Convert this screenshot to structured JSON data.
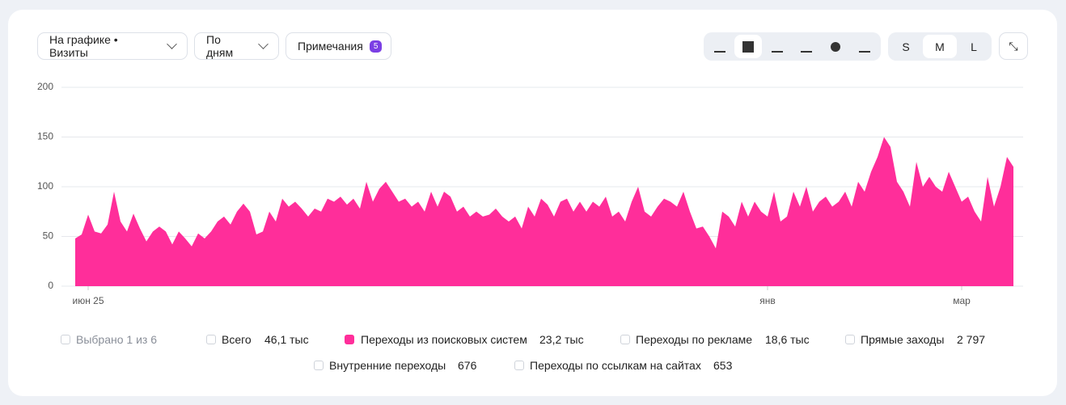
{
  "toolbar": {
    "metric": "На графике • Визиты",
    "period": "По дням",
    "notes": "Примечания",
    "notes_count": "5",
    "sizes": [
      "S",
      "M",
      "L"
    ]
  },
  "legend": {
    "selected": "Выбрано 1 из 6",
    "items": [
      {
        "name": "Всего",
        "value": "46,1 тыс",
        "checked": false
      },
      {
        "name": "Переходы из поисковых систем",
        "value": "23,2 тыс",
        "checked": true
      },
      {
        "name": "Переходы по рекламе",
        "value": "18,6 тыс",
        "checked": false
      },
      {
        "name": "Прямые заходы",
        "value": "2 797",
        "checked": false
      },
      {
        "name": "Внутренние переходы",
        "value": "676",
        "checked": false
      },
      {
        "name": "Переходы по ссылкам на сайтах",
        "value": "653",
        "checked": false
      }
    ]
  },
  "chart_data": {
    "type": "area",
    "color": "#ff2e9a",
    "ylim": [
      0,
      200
    ],
    "yticks": [
      0,
      50,
      100,
      150,
      200
    ],
    "grid": true,
    "categories": [
      null,
      null,
      "июн 25",
      null,
      null,
      null,
      null,
      null,
      null,
      null,
      null,
      null,
      null,
      null,
      null,
      null,
      null,
      null,
      null,
      null,
      null,
      null,
      null,
      null,
      null,
      null,
      null,
      null,
      null,
      null,
      null,
      null,
      null,
      null,
      null,
      null,
      null,
      null,
      null,
      null,
      null,
      null,
      null,
      null,
      null,
      null,
      null,
      null,
      null,
      null,
      null,
      null,
      null,
      null,
      null,
      null,
      null,
      null,
      null,
      null,
      null,
      null,
      null,
      null,
      null,
      null,
      null,
      null,
      null,
      null,
      null,
      null,
      null,
      null,
      null,
      null,
      null,
      null,
      null,
      null,
      null,
      null,
      null,
      null,
      null,
      null,
      null,
      null,
      null,
      null,
      null,
      null,
      null,
      null,
      null,
      null,
      null,
      null,
      null,
      null,
      null,
      null,
      null,
      null,
      null,
      null,
      null,
      "янв",
      null,
      null,
      null,
      null,
      null,
      null,
      null,
      null,
      null,
      null,
      null,
      null,
      null,
      null,
      null,
      null,
      null,
      null,
      null,
      null,
      null,
      null,
      null,
      null,
      null,
      null,
      null,
      null,
      null,
      "мар",
      null,
      null,
      null,
      null,
      null,
      null,
      null,
      null
    ],
    "values": [
      48,
      52,
      72,
      55,
      53,
      62,
      95,
      65,
      55,
      73,
      58,
      45,
      55,
      60,
      55,
      42,
      55,
      48,
      40,
      53,
      48,
      55,
      65,
      70,
      62,
      75,
      83,
      75,
      52,
      55,
      75,
      65,
      88,
      80,
      85,
      78,
      70,
      78,
      75,
      88,
      85,
      90,
      82,
      88,
      78,
      105,
      85,
      98,
      105,
      95,
      85,
      88,
      80,
      85,
      75,
      95,
      80,
      95,
      90,
      75,
      80,
      70,
      75,
      70,
      72,
      78,
      70,
      65,
      70,
      58,
      80,
      70,
      88,
      82,
      70,
      85,
      88,
      75,
      85,
      75,
      85,
      80,
      90,
      70,
      75,
      65,
      85,
      100,
      75,
      70,
      80,
      88,
      85,
      80,
      95,
      75,
      58,
      60,
      50,
      38,
      75,
      70,
      60,
      85,
      70,
      85,
      75,
      70,
      95,
      65,
      70,
      95,
      80,
      100,
      75,
      85,
      90,
      80,
      85,
      95,
      80,
      105,
      95,
      115,
      130,
      150,
      140,
      105,
      95,
      80,
      125,
      100,
      110,
      100,
      95,
      115,
      100,
      85,
      90,
      75,
      65,
      110,
      80,
      100,
      130,
      120
    ]
  }
}
